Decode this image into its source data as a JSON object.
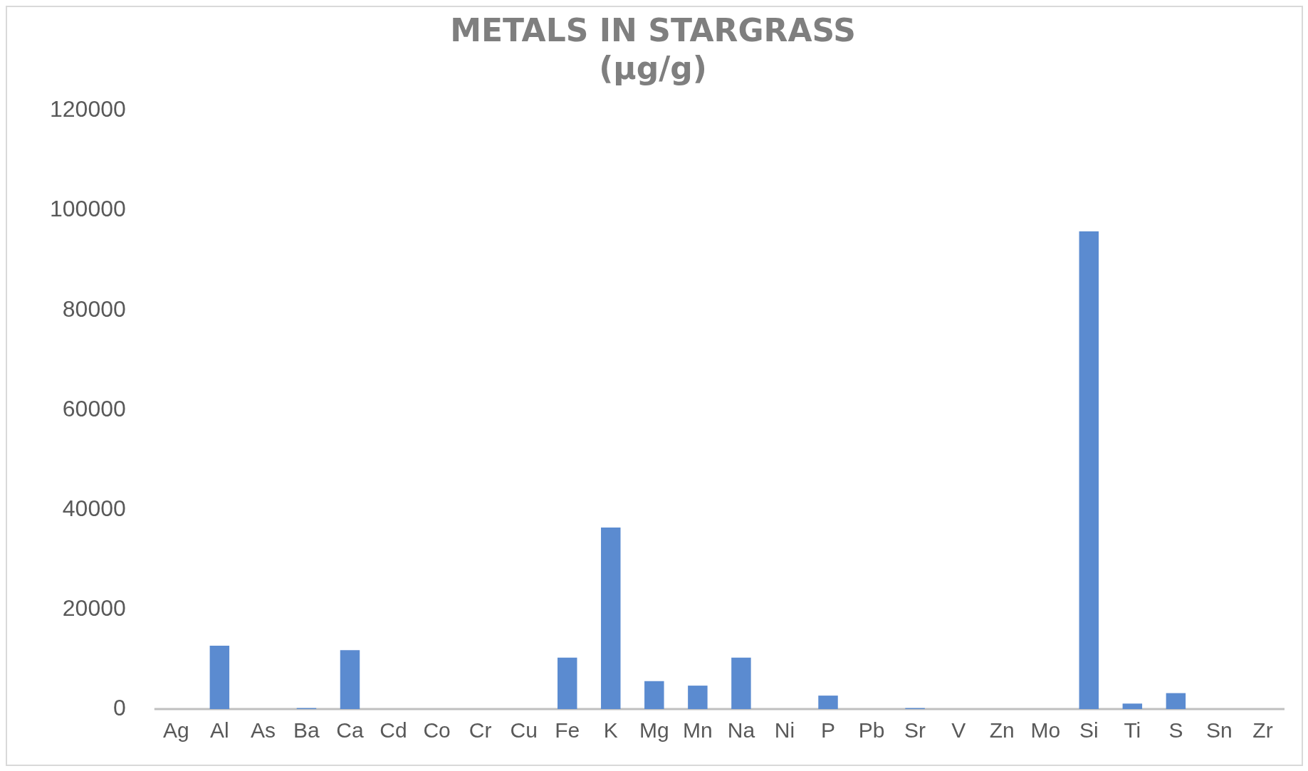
{
  "chart_data": {
    "type": "bar",
    "title": "METALS IN STARGRASS\n(µg/g)",
    "categories": [
      "Ag",
      "Al",
      "As",
      "Ba",
      "Ca",
      "Cd",
      "Co",
      "Cr",
      "Cu",
      "Fe",
      "K",
      "Mg",
      "Mn",
      "Na",
      "Ni",
      "P",
      "Pb",
      "Sr",
      "V",
      "Zn",
      "Mo",
      "Si",
      "Ti",
      "S",
      "Sn",
      "Zr"
    ],
    "values": [
      0,
      12700,
      0,
      200,
      11800,
      0,
      0,
      0,
      0,
      10300,
      36400,
      5600,
      4700,
      10300,
      0,
      2700,
      0,
      200,
      0,
      0,
      0,
      95800,
      1100,
      3200,
      0,
      0
    ],
    "color": "#5b8bd0",
    "ylim": [
      0,
      120000
    ],
    "yticks": [
      0,
      20000,
      40000,
      60000,
      80000,
      100000,
      120000
    ],
    "grid": false,
    "legend": false
  }
}
